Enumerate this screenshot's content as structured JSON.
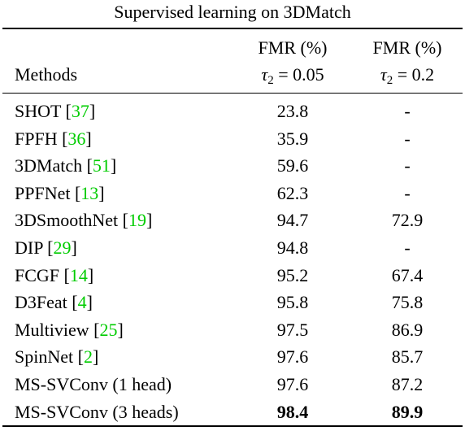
{
  "caption": "Supervised learning on 3DMatch",
  "header": {
    "methods_label": "Methods",
    "col1": {
      "metric": "FMR (%)",
      "tau_symbol": "τ",
      "tau_sub": "2",
      "tau_value": "= 0.05"
    },
    "col2": {
      "metric": "FMR (%)",
      "tau_symbol": "τ",
      "tau_sub": "2",
      "tau_value": "= 0.2"
    }
  },
  "rows": [
    {
      "method": "SHOT [",
      "ref": "37",
      "close": "]",
      "v1": "23.8",
      "v2": "-"
    },
    {
      "method": "FPFH [",
      "ref": "36",
      "close": "]",
      "v1": "35.9",
      "v2": "-"
    },
    {
      "method": "3DMatch [",
      "ref": "51",
      "close": "]",
      "v1": "59.6",
      "v2": "-"
    },
    {
      "method": "PPFNet [",
      "ref": "13",
      "close": "]",
      "v1": "62.3",
      "v2": "-"
    },
    {
      "method": "3DSmoothNet [",
      "ref": "19",
      "close": "]",
      "v1": "94.7",
      "v2": "72.9"
    },
    {
      "method": "DIP [",
      "ref": "29",
      "close": "]",
      "v1": "94.8",
      "v2": "-"
    },
    {
      "method": "FCGF [",
      "ref": "14",
      "close": "]",
      "v1": "95.2",
      "v2": "67.4"
    },
    {
      "method": "D3Feat [",
      "ref": "4",
      "close": "]",
      "v1": "95.8",
      "v2": "75.8"
    },
    {
      "method": "Multiview [",
      "ref": "25",
      "close": "]",
      "v1": "97.5",
      "v2": "86.9"
    },
    {
      "method": "SpinNet [",
      "ref": "2",
      "close": "]",
      "v1": "97.6",
      "v2": "85.7"
    },
    {
      "method": "MS-SVConv (1 head)",
      "ref": "",
      "close": "",
      "v1": "97.6",
      "v2": "87.2"
    },
    {
      "method": "MS-SVConv (3 heads)",
      "ref": "",
      "close": "",
      "v1": "98.4",
      "v2": "89.9",
      "bold": true
    }
  ],
  "colors": {
    "citation": "#00cc00",
    "text": "#000000"
  }
}
